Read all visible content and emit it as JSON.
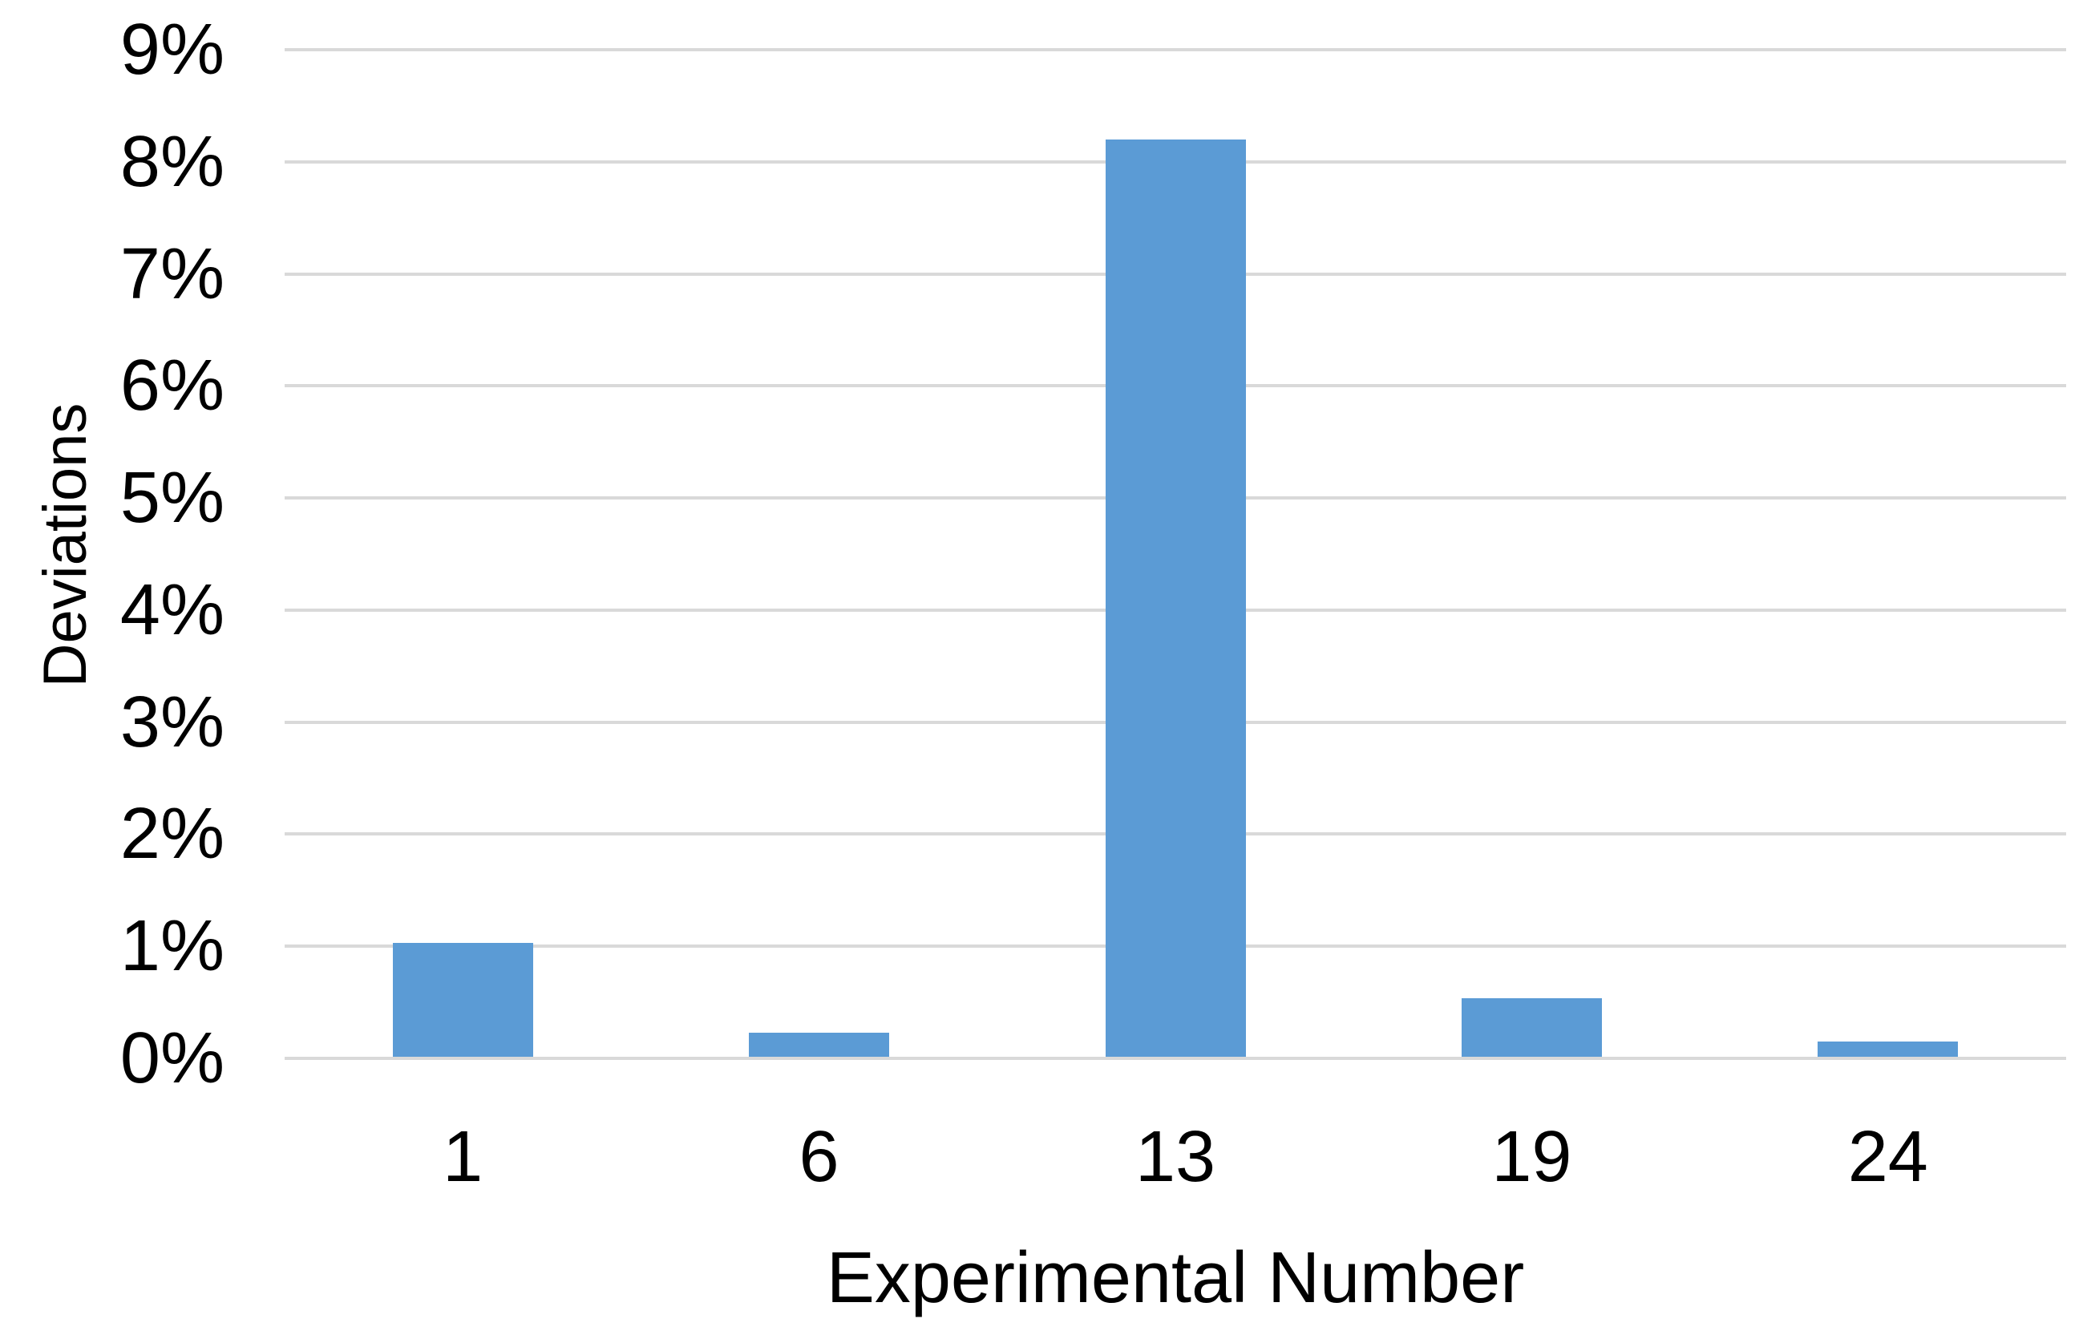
{
  "chart_data": {
    "type": "bar",
    "title": "",
    "xlabel": "Experimental Number",
    "ylabel": "Deviations",
    "categories": [
      "1",
      "6",
      "13",
      "19",
      "24"
    ],
    "values": [
      1.03,
      0.23,
      8.2,
      0.54,
      0.15
    ],
    "series": [
      {
        "name": "Deviations",
        "values": [
          1.03,
          0.23,
          8.2,
          0.54,
          0.15
        ]
      }
    ],
    "ylim": [
      0,
      9
    ],
    "ytick_step": 1,
    "ytick_labels": [
      "0%",
      "1%",
      "2%",
      "3%",
      "4%",
      "5%",
      "6%",
      "7%",
      "8%",
      "9%"
    ],
    "grid": true,
    "grid_axis": "y",
    "legend": false,
    "colors": {
      "bar": "#5B9BD5",
      "gridline": "#D9D9D9",
      "text": "#000000",
      "background": "#FFFFFF"
    }
  }
}
